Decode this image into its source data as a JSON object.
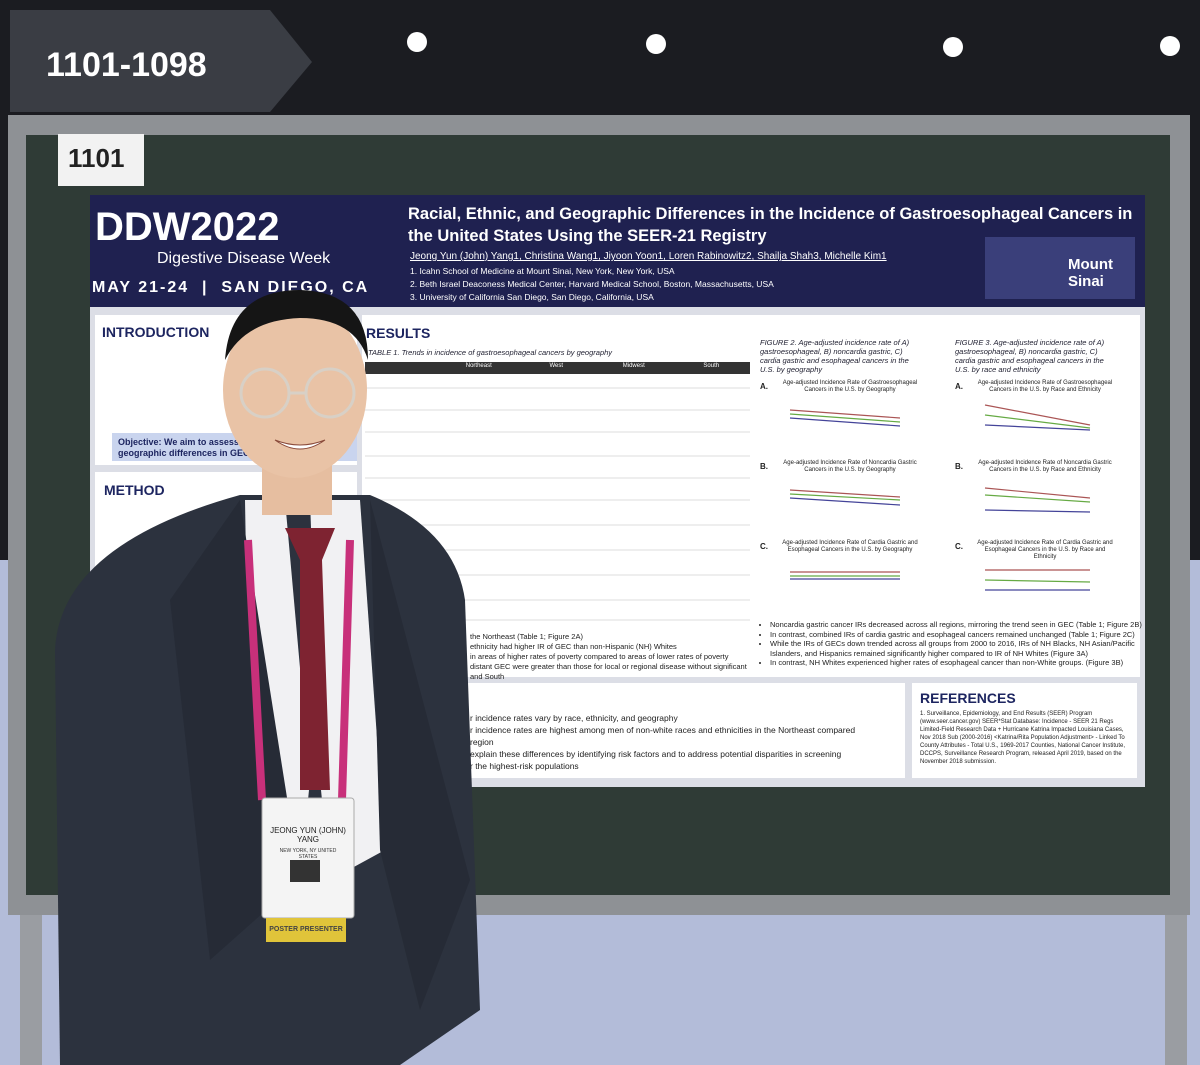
{
  "sign": "1101-1098",
  "board_number": "1101",
  "poster": {
    "logo": "DDW2022",
    "logo_subtitle": "Digestive Disease Week",
    "dates": "MAY 21-24  |  SAN DIEGO, CA",
    "title": "Racial, Ethnic, and Geographic Differences in the Incidence of Gastroesophageal Cancers in the United States Using the SEER-21 Registry",
    "authors": "Jeong Yun (John) Yang1, Christina Wang1, Jiyoon Yoon1, Loren Rabinowitz2, Shailja Shah3, Michelle Kim1",
    "affiliations": [
      "1. Icahn School of Medicine at Mount Sinai, New York, New York, USA",
      "2. Beth Israel Deaconess Medical Center, Harvard Medical School, Boston, Massachusetts, USA",
      "3. University of California San Diego, San Diego, California, USA"
    ],
    "institution": "Mount Sinai",
    "introduction": {
      "heading": "INTRODUCTION",
      "objective": [
        "Objective: We aim to assess",
        "geographic differences in GEC"
      ]
    },
    "method": {
      "heading": "METHOD"
    },
    "results": {
      "heading": "RESULTS",
      "table_caption": "TABLE 1. Trends in incidence of gastroesophageal cancers by geography",
      "table_columns": [
        "Northeast",
        "West",
        "Midwest",
        "South"
      ],
      "partial": [
        "the Northeast (Table 1; Figure 2A)",
        "ethnicity had higher IR of GEC than non-Hispanic (NH) Whites",
        "in areas of higher rates of poverty compared to areas of lower rates of poverty",
        "distant GEC were greater than those for local or regional disease without significant",
        "and South"
      ],
      "figure2": {
        "caption": "FIGURE 2. Age-adjusted incidence rate of A) gastroesophageal, B) noncardia gastric, C) cardia gastric and esophageal cancers in the U.S. by geography",
        "panels": [
          {
            "letter": "A.",
            "title": "Age-adjusted Incidence Rate of Gastroesophageal Cancers in the U.S. by Geography"
          },
          {
            "letter": "B.",
            "title": "Age-adjusted Incidence Rate of Noncardia Gastric Cancers in the U.S. by Geography"
          },
          {
            "letter": "C.",
            "title": "Age-adjusted Incidence Rate of Cardia Gastric and Esophageal Cancers in the U.S. by Geography"
          }
        ]
      },
      "figure3": {
        "caption": "FIGURE 3. Age-adjusted incidence rate of A) gastroesophageal, B) noncardia gastric, C) cardia gastric and esophageal cancers in the U.S. by race and ethnicity",
        "panels": [
          {
            "letter": "A.",
            "title": "Age-adjusted Incidence Rate of Gastroesophageal Cancers in the U.S. by Race and Ethnicity"
          },
          {
            "letter": "B.",
            "title": "Age-adjusted Incidence Rate of Noncardia Gastric Cancers in the U.S. by Race and Ethnicity"
          },
          {
            "letter": "C.",
            "title": "Age-adjusted Incidence Rate of Cardia Gastric and Esophageal Cancers in the U.S. by Race and Ethnicity"
          }
        ]
      },
      "bullets": [
        "Noncardia gastric cancer IRs decreased across all regions, mirroring the trend seen in GEC (Table 1; Figure 2B)",
        "In contrast, combined IRs of cardia gastric and esophageal cancers remained unchanged (Table 1; Figure 2C)",
        "While the IRs of GECs down trended across all groups from 2000 to 2016, IRs of NH Blacks, NH Asian/Pacific Islanders, and Hispanics remained significantly higher compared to IR of NH Whites (Figure 3A)",
        "In contrast, NH Whites experienced higher rates of esophageal cancer than non-White groups. (Figure 3B)"
      ]
    },
    "conclusion": {
      "partial": [
        "r incidence rates vary by race, ethnicity, and geography",
        "r incidence rates are highest among men of non-white races and ethnicities in the Northeast compared",
        "region",
        "explain these differences by identifying risk factors and to address potential disparities in screening",
        "r the highest-risk populations"
      ]
    },
    "references": {
      "heading": "REFERENCES",
      "items": [
        "1. Surveillance, Epidemiology, and End Results (SEER) Program (www.seer.cancer.gov) SEER*Stat Database: Incidence - SEER 21 Regs Limited-Field Research Data + Hurricane Katrina Impacted Louisiana Cases, Nov 2018 Sub (2000-2016) <Katrina/Rita Population Adjustment> - Linked To County Attributes - Total U.S., 1969-2017 Counties, National Cancer Institute, DCCPS, Surveillance Research Program, released April 2019, based on the November 2018 submission."
      ]
    }
  },
  "badge": {
    "name": "JEONG YUN (JOHN) YANG",
    "location": "NEW YORK, NY UNITED STATES",
    "role": "POSTER PRESENTER"
  }
}
